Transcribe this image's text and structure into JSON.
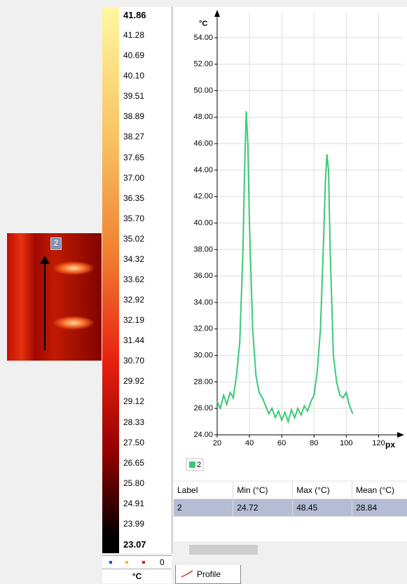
{
  "image": {
    "label": "2"
  },
  "colorbar": {
    "labels": [
      "41.86",
      "41.28",
      "40.69",
      "40.10",
      "39.51",
      "38.89",
      "38.27",
      "37.65",
      "37.00",
      "36.35",
      "35.70",
      "35.02",
      "34.32",
      "33.62",
      "32.92",
      "32.19",
      "31.44",
      "30.70",
      "29.92",
      "29.12",
      "28.33",
      "27.50",
      "26.65",
      "25.80",
      "24.91",
      "23.99",
      "23.07"
    ],
    "count": "0",
    "unit": "°C"
  },
  "chart_data": {
    "type": "line",
    "y_label": "°C",
    "x_label": "px",
    "x": [
      20,
      22,
      24,
      26,
      28,
      30,
      32,
      34,
      36,
      37,
      38,
      39,
      40,
      42,
      44,
      46,
      48,
      50,
      52,
      54,
      56,
      58,
      60,
      62,
      64,
      66,
      68,
      70,
      72,
      74,
      76,
      78,
      80,
      82,
      84,
      86,
      87,
      88,
      89,
      90,
      92,
      94,
      96,
      98,
      100,
      102,
      104
    ],
    "series": [
      {
        "name": "2",
        "color": "#3cc878",
        "values": [
          26.5,
          26.0,
          27.0,
          26.3,
          27.2,
          26.8,
          28.5,
          31.0,
          38.0,
          44.0,
          48.45,
          46.0,
          40.0,
          32.0,
          28.5,
          27.2,
          26.8,
          26.2,
          25.6,
          26.0,
          25.3,
          25.8,
          25.1,
          25.7,
          25.0,
          25.9,
          25.3,
          26.0,
          25.5,
          26.2,
          25.8,
          26.5,
          27.0,
          28.8,
          32.0,
          39.0,
          43.0,
          45.2,
          44.0,
          38.0,
          30.0,
          28.0,
          27.0,
          26.8,
          27.2,
          26.2,
          25.6
        ]
      }
    ],
    "xlim": [
      20,
      135
    ],
    "ylim": [
      24,
      55
    ],
    "xticks": [
      20,
      40,
      60,
      80,
      100,
      120
    ],
    "yticks": [
      {
        "value": 24,
        "label": "24.00"
      },
      {
        "value": 26,
        "label": "26.00"
      },
      {
        "value": 28,
        "label": "28.00"
      },
      {
        "value": 30,
        "label": "30.00"
      },
      {
        "value": 32,
        "label": "32.00"
      },
      {
        "value": 34,
        "label": "34.00"
      },
      {
        "value": 36,
        "label": "36.00"
      },
      {
        "value": 38,
        "label": "38.00"
      },
      {
        "value": 40,
        "label": "40.00"
      },
      {
        "value": 42,
        "label": "42.00"
      },
      {
        "value": 44,
        "label": "44.00"
      },
      {
        "value": 46,
        "label": "46.00"
      },
      {
        "value": 48,
        "label": "48.00"
      },
      {
        "value": 50,
        "label": "50.00"
      },
      {
        "value": 52,
        "label": "52.00"
      },
      {
        "value": 54,
        "label": "54.00"
      }
    ],
    "grid": true
  },
  "table": {
    "headers": [
      "Label",
      "Min (°C)",
      "Max (°C)",
      "Mean (°C)"
    ],
    "rows": [
      [
        "2",
        "24.72",
        "48.45",
        "28.84"
      ]
    ]
  },
  "tabs": [
    "Profile"
  ]
}
